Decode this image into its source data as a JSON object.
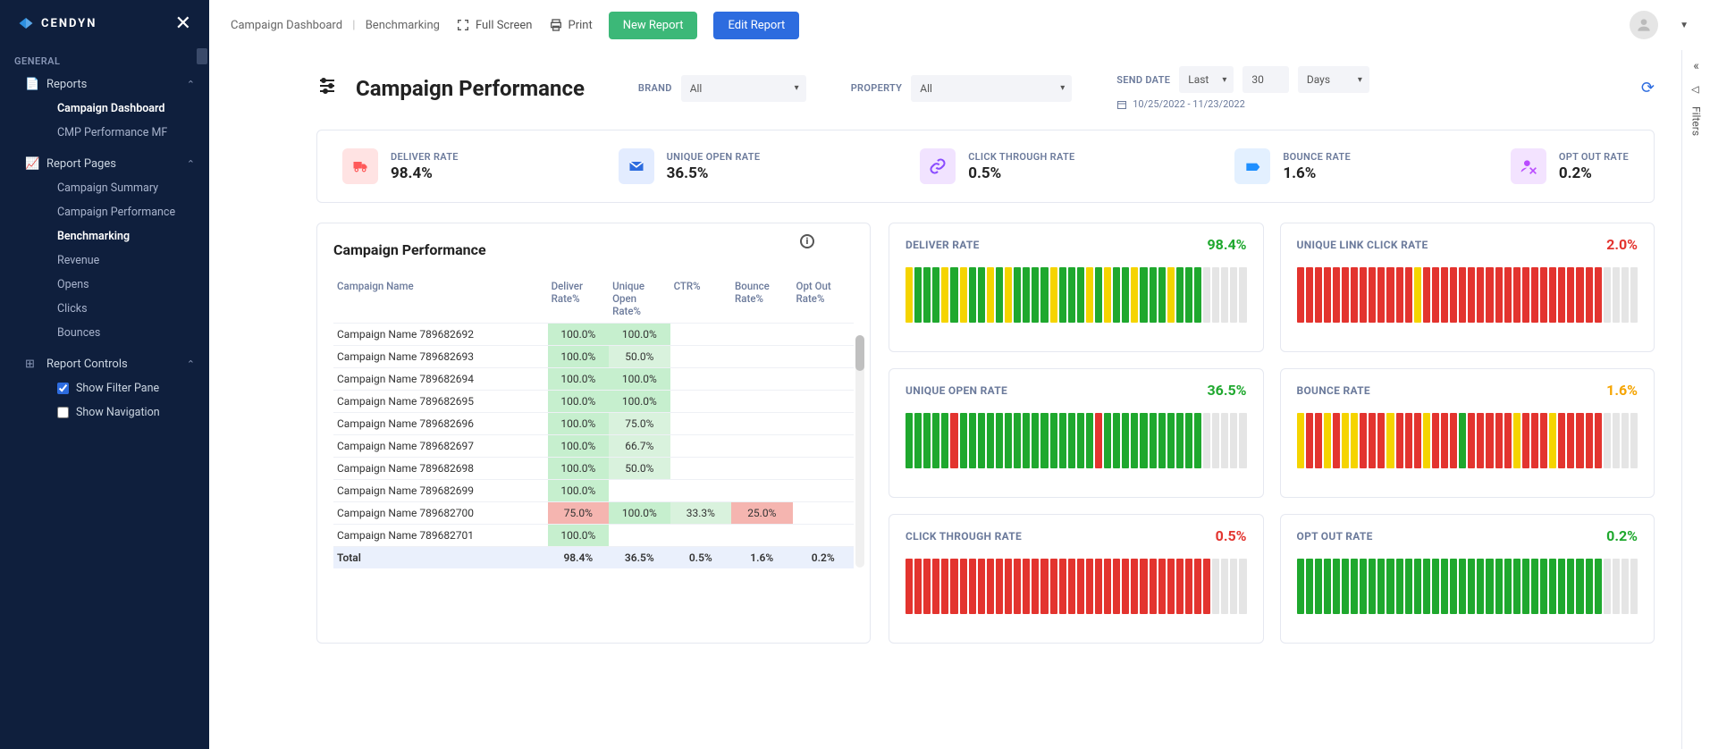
{
  "brand": "CENDYN",
  "sidebar": {
    "general_label": "GENERAL",
    "groups": [
      {
        "icon": "📄",
        "label": "Reports",
        "items": [
          {
            "label": "Campaign Dashboard",
            "active": true
          },
          {
            "label": "CMP Performance MF",
            "active": false
          }
        ]
      },
      {
        "icon": "📈",
        "label": "Report Pages",
        "items": [
          {
            "label": "Campaign Summary"
          },
          {
            "label": "Campaign Performance"
          },
          {
            "label": "Benchmarking",
            "bold": true
          },
          {
            "label": "Revenue"
          },
          {
            "label": "Opens"
          },
          {
            "label": "Clicks"
          },
          {
            "label": "Bounces"
          }
        ]
      },
      {
        "icon": "⊞",
        "label": "Report Controls",
        "checks": [
          {
            "label": "Show Filter Pane",
            "checked": true
          },
          {
            "label": "Show Navigation",
            "checked": false
          }
        ]
      }
    ]
  },
  "topbar": {
    "crumb1": "Campaign Dashboard",
    "crumb2": "Benchmarking",
    "fullscreen": "Full Screen",
    "print": "Print",
    "new_report": "New Report",
    "edit_report": "Edit Report"
  },
  "header": {
    "title": "Campaign Performance",
    "brand_label": "BRAND",
    "brand_value": "All",
    "property_label": "PROPERTY",
    "property_value": "All",
    "senddate_label": "SEND DATE",
    "sd_v1": "Last",
    "sd_v2": "30",
    "sd_v3": "Days",
    "date_range": "10/25/2022 - 11/23/2022"
  },
  "kpis": [
    {
      "label": "DELIVER RATE",
      "value": "98.4%",
      "bg": "#ffe3e3",
      "fg": "#ff5a5a",
      "icon": "truck"
    },
    {
      "label": "UNIQUE OPEN RATE",
      "value": "36.5%",
      "bg": "#e3ecff",
      "fg": "#2d6cdf",
      "icon": "mail"
    },
    {
      "label": "CLICK THROUGH RATE",
      "value": "0.5%",
      "bg": "#f1e3ff",
      "fg": "#8a4bff",
      "icon": "link"
    },
    {
      "label": "BOUNCE RATE",
      "value": "1.6%",
      "bg": "#e3f0ff",
      "fg": "#1f8fff",
      "icon": "bounce"
    },
    {
      "label": "OPT OUT RATE",
      "value": "0.2%",
      "bg": "#f3e3ff",
      "fg": "#b94bff",
      "icon": "optout"
    }
  ],
  "table": {
    "title": "Campaign Performance",
    "headers": [
      "Campaign Name",
      "Deliver Rate%",
      "Unique Open Rate%",
      "CTR%",
      "Bounce Rate%",
      "Opt Out Rate%"
    ],
    "rows": [
      {
        "name": "Campaign Name 789682692",
        "cells": [
          {
            "v": "100.0%",
            "c": "g"
          },
          {
            "v": "100.0%",
            "c": "g"
          },
          {
            "v": ""
          },
          {
            "v": ""
          },
          {
            "v": ""
          }
        ]
      },
      {
        "name": "Campaign Name 789682693",
        "cells": [
          {
            "v": "100.0%",
            "c": "g"
          },
          {
            "v": "50.0%",
            "c": "g2"
          },
          {
            "v": ""
          },
          {
            "v": ""
          },
          {
            "v": ""
          }
        ]
      },
      {
        "name": "Campaign Name 789682694",
        "cells": [
          {
            "v": "100.0%",
            "c": "g"
          },
          {
            "v": "100.0%",
            "c": "g"
          },
          {
            "v": ""
          },
          {
            "v": ""
          },
          {
            "v": ""
          }
        ]
      },
      {
        "name": "Campaign Name 789682695",
        "cells": [
          {
            "v": "100.0%",
            "c": "g"
          },
          {
            "v": "100.0%",
            "c": "g"
          },
          {
            "v": ""
          },
          {
            "v": ""
          },
          {
            "v": ""
          }
        ]
      },
      {
        "name": "Campaign Name 789682696",
        "cells": [
          {
            "v": "100.0%",
            "c": "g"
          },
          {
            "v": "75.0%",
            "c": "g2"
          },
          {
            "v": ""
          },
          {
            "v": ""
          },
          {
            "v": ""
          }
        ]
      },
      {
        "name": "Campaign Name 789682697",
        "cells": [
          {
            "v": "100.0%",
            "c": "g"
          },
          {
            "v": "66.7%",
            "c": "g2"
          },
          {
            "v": ""
          },
          {
            "v": ""
          },
          {
            "v": ""
          }
        ]
      },
      {
        "name": "Campaign Name 789682698",
        "cells": [
          {
            "v": "100.0%",
            "c": "g"
          },
          {
            "v": "50.0%",
            "c": "g2"
          },
          {
            "v": ""
          },
          {
            "v": ""
          },
          {
            "v": ""
          }
        ]
      },
      {
        "name": "Campaign Name 789682699",
        "cells": [
          {
            "v": "100.0%",
            "c": "g"
          },
          {
            "v": ""
          },
          {
            "v": ""
          },
          {
            "v": ""
          },
          {
            "v": ""
          }
        ]
      },
      {
        "name": "Campaign Name 789682700",
        "cells": [
          {
            "v": "75.0%",
            "c": "r"
          },
          {
            "v": "100.0%",
            "c": "g"
          },
          {
            "v": "33.3%",
            "c": "g2"
          },
          {
            "v": "25.0%",
            "c": "r"
          },
          {
            "v": ""
          }
        ]
      },
      {
        "name": "Campaign Name 789682701",
        "cells": [
          {
            "v": "100.0%",
            "c": "g"
          },
          {
            "v": ""
          },
          {
            "v": ""
          },
          {
            "v": ""
          },
          {
            "v": ""
          }
        ]
      }
    ],
    "total": {
      "label": "Total",
      "values": [
        "98.4%",
        "36.5%",
        "0.5%",
        "1.6%",
        "0.2%"
      ]
    }
  },
  "charts": {
    "colors": {
      "green": "#1fa82e",
      "yellow": "#f5d400",
      "red": "#e3342f",
      "gray": "#e5e5e5"
    },
    "items": [
      {
        "title": "DELIVER RATE",
        "value": "98.4%",
        "vcolor": "#1fa82e",
        "bars": "ygggygyggygyggggygggygyggygggygggeeeee"
      },
      {
        "title": "UNIQUE LINK CLICK RATE",
        "value": "2.0%",
        "vcolor": "#e3342f",
        "bars": "rrrrrrrrrrrrryrrrrrrrrrrrrrrrrrrrreeee"
      },
      {
        "title": "UNIQUE OPEN RATE",
        "value": "36.5%",
        "vcolor": "#1fa82e",
        "bars": "gggggrgggggggggggggggrgggggggggggeeeee"
      },
      {
        "title": "BOUNCE RATE",
        "value": "1.6%",
        "vcolor": "#f5a400",
        "bars": "yrryryyrrryrrryrrrgrrrrryrrryrrrrreeee"
      },
      {
        "title": "CLICK THROUGH RATE",
        "value": "0.5%",
        "vcolor": "#e3342f",
        "bars": "rrrrrrrrrrrrrrrrrrrrrrrrrrrrrrrrrreeee"
      },
      {
        "title": "OPT OUT RATE",
        "value": "0.2%",
        "vcolor": "#1fa82e",
        "bars": "ggggggggggggggggggggggggggggggggggeeee"
      }
    ]
  },
  "rail": {
    "label": "Filters"
  }
}
